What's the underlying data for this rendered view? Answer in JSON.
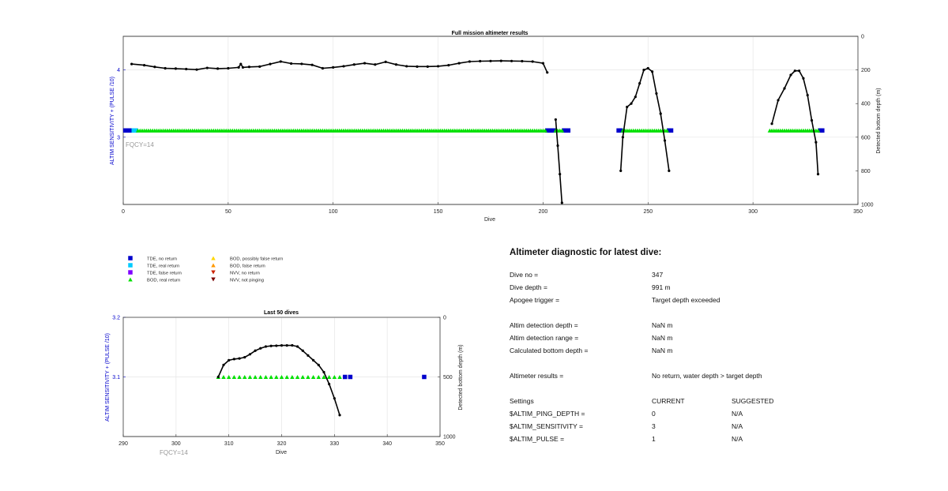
{
  "colors": {
    "tde_no_return": "#0000cc",
    "tde_real_return": "#00ccff",
    "tde_false_return": "#7f00ff",
    "bod_real_return": "#00e000",
    "bod_possibly_false": "#ffd700",
    "bod_false_return": "#ff9900",
    "nvv_no_return": "#cc2200",
    "nvv_not_pinging": "#7a0000",
    "bottom_depth_line": "#000000",
    "axis_label_left": "#0000cc",
    "fqcy_text": "#999999"
  },
  "legend": {
    "items": [
      {
        "label": "TDE, no return",
        "icon": "blue-square-icon",
        "color": "#0000cc",
        "shape": "square"
      },
      {
        "label": "TDE, real return",
        "icon": "cyan-square-icon",
        "color": "#00ccff",
        "shape": "square"
      },
      {
        "label": "TDE, false return",
        "icon": "purple-square-icon",
        "color": "#7f00ff",
        "shape": "square"
      },
      {
        "label": "BOD, real return",
        "icon": "green-triangle-icon",
        "color": "#00e000",
        "shape": "triangle-up"
      },
      {
        "label": "BOD, possibly false return",
        "icon": "yellow-triangle-icon",
        "color": "#ffd700",
        "shape": "triangle-up"
      },
      {
        "label": "BOD, false return",
        "icon": "orange-triangle-icon",
        "color": "#ff9900",
        "shape": "triangle-up"
      },
      {
        "label": "NVV, no return",
        "icon": "red-triangle-down-icon",
        "color": "#cc2200",
        "shape": "triangle-down"
      },
      {
        "label": "NVV, not pinging",
        "icon": "darkred-triangle-down-icon",
        "color": "#7a0000",
        "shape": "triangle-down"
      }
    ]
  },
  "diagnostic": {
    "title": "Altimeter diagnostic for latest dive:",
    "dive_no_label": "Dive no =",
    "dive_no_value": "347",
    "dive_depth_label": "Dive depth =",
    "dive_depth_value": "991 m",
    "apogee_label": "Apogee trigger =",
    "apogee_value": "Target depth exceeded",
    "det_depth_label": "Altim detection depth =",
    "det_depth_value": "NaN m",
    "det_range_label": "Altim detection range =",
    "det_range_value": "NaN m",
    "calc_bottom_label": "Calculated bottom depth =",
    "calc_bottom_value": "NaN m",
    "results_label": "Altimeter results =",
    "results_value": "No return, water depth > target depth",
    "settings_label": "Settings",
    "current_header": "CURRENT",
    "suggested_header": "SUGGESTED",
    "ping_depth_label": "$ALTIM_PING_DEPTH =",
    "ping_depth_current": "0",
    "ping_depth_suggested": "N/A",
    "sensitivity_label": "$ALTIM_SENSITIVITY =",
    "sensitivity_current": "3",
    "sensitivity_suggested": "N/A",
    "pulse_label": "$ALTIM_PULSE =",
    "pulse_current": "1",
    "pulse_suggested": "N/A"
  },
  "chart_data": [
    {
      "type": "scatter",
      "title": "Full mission altimeter results",
      "xlabel": "Dive",
      "ylabel": "ALTIM SENSITIVITY + (PULSE /10)",
      "y2label": "Detected bottom depth (m)",
      "xlim": [
        0,
        350
      ],
      "ylim": [
        2,
        4.5
      ],
      "y2lim": [
        0,
        1000
      ],
      "y2_reversed": true,
      "xticks": [
        "0",
        "50",
        "100",
        "150",
        "200",
        "250",
        "300",
        "350"
      ],
      "yticks": [
        "3",
        "4"
      ],
      "y2ticks": [
        "0",
        "200",
        "400",
        "600",
        "800",
        "1000"
      ],
      "annotation": "FQCY=14",
      "grid": true,
      "settings_series": [
        {
          "name": "TDE, no return",
          "marker": "square",
          "color": "#0000cc",
          "x": [
            1,
            2,
            3,
            4,
            202,
            203,
            204,
            205,
            210,
            211,
            212,
            236,
            237,
            260,
            261,
            332,
            333
          ],
          "y": [
            3.1,
            3.1,
            3.1,
            3.1,
            3.1,
            3.1,
            3.1,
            3.1,
            3.1,
            3.1,
            3.1,
            3.1,
            3.1,
            3.1,
            3.1,
            3.1,
            3.1
          ]
        },
        {
          "name": "TDE, real return",
          "marker": "square",
          "color": "#00ccff",
          "x": [
            5,
            6
          ],
          "y": [
            3.1,
            3.1
          ]
        },
        {
          "name": "BOD, real return",
          "marker": "triangle-up",
          "color": "#00e000",
          "x_ranges": [
            [
              7,
              201
            ],
            [
              206,
              209
            ],
            [
              238,
              259
            ],
            [
              308,
              331
            ]
          ],
          "y": 3.1
        }
      ],
      "bottom_depth_segments": [
        {
          "x": [
            4,
            10,
            15,
            20,
            25,
            30,
            35,
            40,
            45,
            50,
            55,
            56,
            57,
            60,
            65,
            70,
            75,
            80,
            85,
            90,
            95,
            100,
            105,
            110,
            115,
            120,
            125,
            130,
            135,
            140,
            145,
            150,
            155,
            160,
            165,
            170,
            175,
            180,
            185,
            190,
            195,
            200,
            202
          ],
          "y": [
            165,
            172,
            182,
            190,
            192,
            195,
            198,
            188,
            192,
            190,
            185,
            165,
            185,
            182,
            180,
            165,
            150,
            162,
            164,
            170,
            190,
            185,
            178,
            168,
            160,
            168,
            152,
            168,
            178,
            180,
            180,
            178,
            172,
            160,
            150,
            148,
            147,
            146,
            147,
            148,
            150,
            160,
            215
          ]
        },
        {
          "x": [
            206,
            207,
            208,
            209
          ],
          "y": [
            495,
            650,
            820,
            990
          ]
        },
        {
          "x": [
            237,
            238,
            240,
            242,
            244,
            246,
            248,
            250,
            252,
            254,
            256,
            258,
            260
          ],
          "y": [
            800,
            600,
            420,
            400,
            360,
            280,
            200,
            190,
            210,
            340,
            460,
            620,
            800
          ]
        },
        {
          "x": [
            309,
            312,
            315,
            318,
            320,
            322,
            324,
            326,
            328,
            330,
            331
          ],
          "y": [
            520,
            380,
            310,
            230,
            205,
            205,
            250,
            350,
            500,
            630,
            820
          ]
        }
      ]
    },
    {
      "type": "scatter",
      "title": "Last 50 dives",
      "xlabel": "Dive",
      "ylabel": "ALTIM SENSITIVITY + (PULSE /10)",
      "y2label": "Detected bottom depth (m)",
      "xlim": [
        290,
        350
      ],
      "ylim": [
        3,
        3.2
      ],
      "y2lim": [
        0,
        1000
      ],
      "y2_reversed": true,
      "xticks": [
        "290",
        "300",
        "310",
        "320",
        "330",
        "340",
        "350"
      ],
      "yticks": [
        "3.1",
        "3.2"
      ],
      "y2ticks": [
        "0",
        "500",
        "1000"
      ],
      "annotation": "FQCY=14",
      "grid": true,
      "settings_series": [
        {
          "name": "TDE, no return",
          "marker": "square",
          "color": "#0000cc",
          "x": [
            332,
            333,
            347
          ],
          "y": [
            3.1,
            3.1,
            3.1
          ]
        },
        {
          "name": "BOD, real return",
          "marker": "triangle-up",
          "color": "#00e000",
          "x_ranges": [
            [
              308,
              331
            ]
          ],
          "y": 3.1
        }
      ],
      "bottom_depth_segments": [
        {
          "x": [
            308,
            309,
            310,
            311,
            312,
            313,
            314,
            315,
            316,
            317,
            318,
            319,
            320,
            321,
            322,
            323,
            324,
            325,
            326,
            327,
            328,
            329,
            330,
            331
          ],
          "y": [
            500,
            400,
            360,
            350,
            345,
            335,
            310,
            280,
            260,
            245,
            240,
            238,
            236,
            236,
            235,
            245,
            280,
            320,
            360,
            400,
            460,
            560,
            680,
            820
          ]
        }
      ]
    }
  ]
}
